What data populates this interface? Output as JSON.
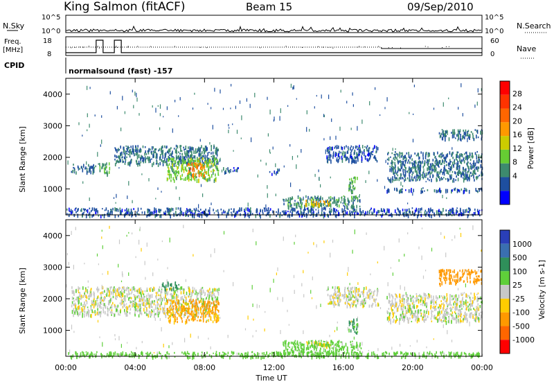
{
  "header": {
    "station": "King Salmon (fitACF)",
    "beam": "Beam 15",
    "date": "09/Sep/2010"
  },
  "top_panels": {
    "nsky_label": "N.Sky",
    "nsearch_label": "N.Search",
    "scale_hi": "10^5",
    "scale_lo": "10^0",
    "freq_label_line1": "Freq.",
    "freq_label_line2": "[MHz]",
    "freq_ticks": [
      "18",
      "8"
    ],
    "nave_label": "Nave",
    "nave_ticks": [
      "60",
      "0"
    ],
    "cpid_label": "CPID",
    "cpid_text": "normalsound (fast) -157",
    "freq_step_hours": [
      [
        1.75,
        2.15
      ],
      [
        2.8,
        3.2
      ]
    ],
    "nave_step_hours": [
      [
        18.2,
        24.0
      ]
    ]
  },
  "power_panel": {
    "ylabel": "Slant Range [km]",
    "yticks": [
      "4000",
      "3000",
      "2000",
      "1000"
    ],
    "colorbar_label": "Power [dB]",
    "colorbar_ticks": [
      "28",
      "24",
      "20",
      "16",
      "12",
      "8",
      "4"
    ],
    "colors": [
      "#0000ff",
      "#1e4fa0",
      "#3d8a6e",
      "#66cc33",
      "#cccc00",
      "#ff9900",
      "#ff6600",
      "#ff3300",
      "#ff0000"
    ]
  },
  "velocity_panel": {
    "ylabel": "Slant Range [km]",
    "yticks": [
      "4000",
      "3000",
      "2000",
      "1000"
    ],
    "colorbar_label": "Velocity [m s-1]",
    "colorbar_ticks": [
      "1000",
      "500",
      "100",
      "25",
      "-25",
      "-100",
      "-500",
      "-1000"
    ],
    "colors": [
      "#2a3fb8",
      "#3a6fb0",
      "#2f8f5a",
      "#5fcf3a",
      "#c8c8c8",
      "#ffcc00",
      "#ff9900",
      "#ff6600",
      "#ff0000"
    ]
  },
  "x_axis": {
    "label": "Time UT",
    "ticks": [
      "00:00",
      "04:00",
      "08:00",
      "12:00",
      "16:00",
      "20:00",
      "00:00"
    ]
  },
  "chart_data": {
    "type": "heatmap",
    "x_range_hours": [
      0,
      24
    ],
    "y_range_km": [
      180,
      4500
    ],
    "power_regions": [
      {
        "t0": 0.3,
        "t1": 1.7,
        "r0": 1550,
        "r1": 1800,
        "value": 8
      },
      {
        "t0": 1.8,
        "t1": 2.5,
        "r0": 1500,
        "r1": 1850,
        "value": 12
      },
      {
        "t0": 2.8,
        "t1": 8.8,
        "r0": 1800,
        "r1": 2400,
        "value": 8
      },
      {
        "t0": 5.8,
        "t1": 8.8,
        "r0": 1300,
        "r1": 2000,
        "value": 14
      },
      {
        "t0": 7.0,
        "t1": 8.0,
        "r0": 1450,
        "r1": 1850,
        "value": 24
      },
      {
        "t0": 9.0,
        "t1": 10.0,
        "r0": 1550,
        "r1": 1700,
        "value": 6
      },
      {
        "t0": 11.7,
        "t1": 12.3,
        "r0": 1500,
        "r1": 1650,
        "value": 6
      },
      {
        "t0": 12.5,
        "t1": 17.0,
        "r0": 450,
        "r1": 800,
        "value": 10
      },
      {
        "t0": 13.8,
        "t1": 15.2,
        "r0": 520,
        "r1": 680,
        "value": 20
      },
      {
        "t0": 16.3,
        "t1": 16.8,
        "r0": 900,
        "r1": 1400,
        "value": 12
      },
      {
        "t0": 15.0,
        "t1": 18.0,
        "r0": 1900,
        "r1": 2400,
        "value": 6
      },
      {
        "t0": 18.5,
        "t1": 24.0,
        "r0": 1300,
        "r1": 2200,
        "value": 8
      },
      {
        "t0": 21.5,
        "t1": 24.0,
        "r0": 2600,
        "r1": 2900,
        "value": 8
      },
      {
        "t0": 18.5,
        "t1": 24.0,
        "r0": 950,
        "r1": 1050,
        "value": 6
      },
      {
        "t0": 0.0,
        "t1": 24.0,
        "r0": 180,
        "r1": 420,
        "value": 6
      }
    ],
    "velocity_regions": [
      {
        "t0": 0.3,
        "t1": 8.8,
        "r0": 1500,
        "r1": 2400,
        "value": 0
      },
      {
        "t0": 5.8,
        "t1": 8.8,
        "r0": 1300,
        "r1": 2000,
        "value": -120
      },
      {
        "t0": 5.5,
        "t1": 6.5,
        "r0": 2300,
        "r1": 2550,
        "value": 150
      },
      {
        "t0": 13.8,
        "t1": 15.2,
        "r0": 520,
        "r1": 680,
        "value": -60
      },
      {
        "t0": 12.5,
        "t1": 17.0,
        "r0": 300,
        "r1": 700,
        "value": 60
      },
      {
        "t0": 16.3,
        "t1": 16.8,
        "r0": 900,
        "r1": 1400,
        "value": 120
      },
      {
        "t0": 15.0,
        "t1": 18.0,
        "r0": 1800,
        "r1": 2400,
        "value": 0
      },
      {
        "t0": 18.5,
        "t1": 24.0,
        "r0": 1300,
        "r1": 2200,
        "value": 0
      },
      {
        "t0": 21.5,
        "t1": 24.0,
        "r0": 2500,
        "r1": 2950,
        "value": -150
      },
      {
        "t0": 0.0,
        "t1": 24.0,
        "r0": 180,
        "r1": 350,
        "value": 60
      }
    ]
  }
}
